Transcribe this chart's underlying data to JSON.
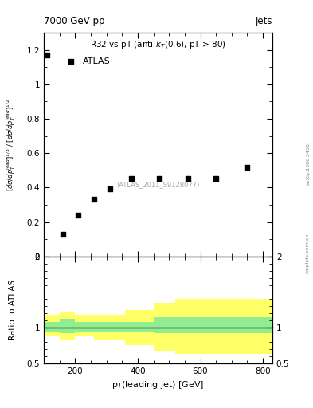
{
  "title_left": "7000 GeV pp",
  "title_right": "Jets",
  "plot_title": "R32 vs pT (anti-k$_T$(0.6), pT > 80)",
  "atlas_label": "ATLAS",
  "watermark": "(ATLAS_2011_S9128077)",
  "ylabel_ratio": "Ratio to ATLAS",
  "xlabel": "p$_{T}$(leading jet) [GeV]",
  "arxiv_text": "[arXiv:1306.3436]",
  "mcplots_text": "mcplots.cern.ch",
  "data_x": [
    110,
    160,
    210,
    260,
    310,
    380,
    470,
    560,
    650,
    750
  ],
  "data_y": [
    1.17,
    0.13,
    0.24,
    0.335,
    0.395,
    0.455,
    0.455,
    0.455,
    0.455,
    0.52
  ],
  "main_ylim": [
    0.0,
    1.3
  ],
  "ratio_ylim": [
    0.5,
    2.0
  ],
  "xlim": [
    100,
    830
  ],
  "ratio_bins": [
    100,
    150,
    200,
    260,
    360,
    450,
    520,
    600,
    680,
    830
  ],
  "ratio_green_top": [
    1.08,
    1.12,
    1.08,
    1.08,
    1.08,
    1.15,
    1.15,
    1.15,
    1.15
  ],
  "ratio_green_bot": [
    0.95,
    0.92,
    0.95,
    0.95,
    0.95,
    0.92,
    0.92,
    0.92,
    0.92
  ],
  "ratio_yellow_top": [
    1.18,
    1.22,
    1.18,
    1.18,
    1.25,
    1.35,
    1.4,
    1.4,
    1.4
  ],
  "ratio_yellow_bot": [
    0.88,
    0.82,
    0.88,
    0.82,
    0.75,
    0.68,
    0.63,
    0.63,
    0.63
  ],
  "green_color": "#90EE90",
  "yellow_color": "#FFFF66",
  "marker_color": "#000000",
  "line_color": "#000000",
  "bg_color": "#ffffff"
}
